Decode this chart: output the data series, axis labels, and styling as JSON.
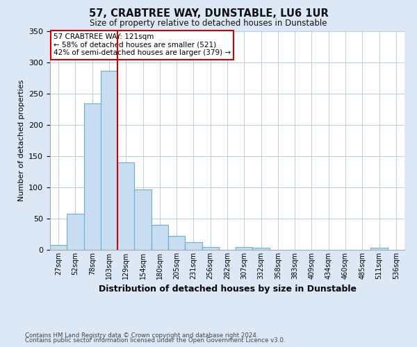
{
  "title": "57, CRABTREE WAY, DUNSTABLE, LU6 1UR",
  "subtitle": "Size of property relative to detached houses in Dunstable",
  "xlabel": "Distribution of detached houses by size in Dunstable",
  "ylabel": "Number of detached properties",
  "bar_labels": [
    "27sqm",
    "52sqm",
    "78sqm",
    "103sqm",
    "129sqm",
    "154sqm",
    "180sqm",
    "205sqm",
    "231sqm",
    "256sqm",
    "282sqm",
    "307sqm",
    "332sqm",
    "358sqm",
    "383sqm",
    "409sqm",
    "434sqm",
    "460sqm",
    "485sqm",
    "511sqm",
    "536sqm"
  ],
  "bar_heights": [
    8,
    58,
    234,
    287,
    140,
    97,
    40,
    22,
    12,
    5,
    0,
    4,
    3,
    0,
    0,
    0,
    0,
    0,
    0,
    3,
    0
  ],
  "bar_color": "#c9ddf0",
  "bar_edgecolor": "#6aaed6",
  "bar_linewidth": 0.8,
  "vline_x": 4.0,
  "vline_color": "#cc0000",
  "vline_linewidth": 1.5,
  "annotation_title": "57 CRABTREE WAY: 121sqm",
  "annotation_line1": "← 58% of detached houses are smaller (521)",
  "annotation_line2": "42% of semi-detached houses are larger (379) →",
  "annotation_box_color": "#cc0000",
  "ylim": [
    0,
    350
  ],
  "yticks": [
    0,
    50,
    100,
    150,
    200,
    250,
    300,
    350
  ],
  "footnote1": "Contains HM Land Registry data © Crown copyright and database right 2024.",
  "footnote2": "Contains public sector information licensed under the Open Government Licence v3.0.",
  "bg_color": "#dce8f5",
  "plot_bg_color": "#ffffff",
  "grid_color": "#b8cfe0"
}
